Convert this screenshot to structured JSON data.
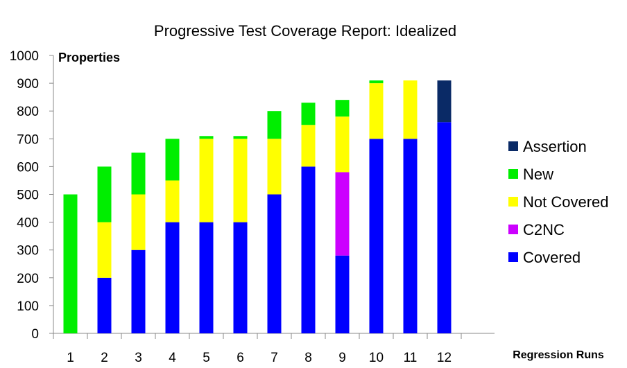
{
  "chart_data": {
    "type": "bar",
    "stacked": true,
    "title": "Progressive Test Coverage Report: Idealized",
    "ylabel": "Properties",
    "xlabel": "Regression Runs",
    "ylim": [
      0,
      1000
    ],
    "yticks": [
      "0",
      "100",
      "200",
      "300",
      "400",
      "500",
      "600",
      "700",
      "800",
      "900",
      "1000"
    ],
    "categories": [
      "1",
      "2",
      "3",
      "4",
      "5",
      "6",
      "7",
      "8",
      "9",
      "10",
      "11",
      "12"
    ],
    "grid": false,
    "legend_position": "right",
    "series": [
      {
        "name": "Covered",
        "color": "#0000ff",
        "values": [
          0,
          200,
          300,
          400,
          400,
          400,
          500,
          600,
          280,
          700,
          700,
          760
        ]
      },
      {
        "name": "C2NC",
        "color": "#cc00ff",
        "values": [
          0,
          0,
          0,
          0,
          0,
          0,
          0,
          0,
          300,
          0,
          0,
          0
        ]
      },
      {
        "name": "Not Covered",
        "color": "#ffff00",
        "values": [
          0,
          200,
          200,
          150,
          300,
          300,
          200,
          150,
          200,
          200,
          210,
          0
        ]
      },
      {
        "name": "New",
        "color": "#00ee00",
        "values": [
          500,
          200,
          150,
          150,
          10,
          10,
          100,
          80,
          60,
          10,
          0,
          0
        ]
      },
      {
        "name": "Assertion",
        "color": "#0a2a66",
        "values": [
          0,
          0,
          0,
          0,
          0,
          0,
          0,
          0,
          0,
          0,
          0,
          150
        ]
      }
    ],
    "legend_order": [
      "Assertion",
      "New",
      "Not Covered",
      "C2NC",
      "Covered"
    ]
  }
}
